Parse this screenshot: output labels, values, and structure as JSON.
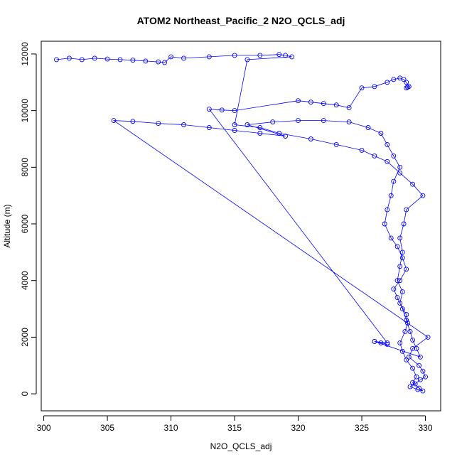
{
  "chart_data": {
    "type": "scatter",
    "title": "ATOM2 Northeast_Pacific_2 N2O_QCLS_adj",
    "xlabel": "N2O_QCLS_adj",
    "ylabel": "Altitude (m)",
    "xlim": [
      299.8,
      331.2
    ],
    "ylim": [
      -600,
      12450
    ],
    "xticks": [
      300,
      305,
      310,
      315,
      320,
      325,
      330
    ],
    "yticks": [
      0,
      2000,
      4000,
      6000,
      8000,
      10000,
      12000
    ],
    "marker": "open circle",
    "connected": true,
    "color": "#0000ff",
    "grid": false,
    "legend": "none",
    "x": [
      301.0,
      302.0,
      303.0,
      304.0,
      305.0,
      306.0,
      307.0,
      308.0,
      309.0,
      309.5,
      310.0,
      311.0,
      313.0,
      315.0,
      317.0,
      318.5,
      319.0,
      319.5,
      316.0,
      315.0,
      317.0,
      318.5,
      321.0,
      323.0,
      325.0,
      326.0,
      327.0,
      328.0,
      329.0,
      329.8,
      328.5,
      328.3,
      328.0,
      328.2,
      328.0,
      327.8,
      328.2,
      328.0,
      328.5,
      328.6,
      328.4,
      328.0,
      328.2,
      328.5,
      329.0,
      329.3,
      329.0,
      329.5,
      329.8,
      329.4,
      328.8,
      329.2,
      329.6,
      330.0,
      329.8,
      329.5,
      328.7,
      329.0,
      330.2,
      305.5,
      307.0,
      309.0,
      311.0,
      313.0,
      315.0,
      317.0,
      319.0,
      316.0,
      318.0,
      320.0,
      322.0,
      324.0,
      325.5,
      326.5,
      327.0,
      327.5,
      328.0,
      327.5,
      327.3,
      327.0,
      326.8,
      327.3,
      327.8,
      328.2,
      328.5,
      328.0,
      327.5,
      327.8,
      328.2,
      328.5,
      328.8,
      329.0,
      329.3,
      329.6,
      326.0,
      326.5,
      327.0,
      326.0,
      327.0,
      313.0,
      314.0,
      315.0,
      320.0,
      321.0,
      322.0,
      323.0,
      324.0,
      325.0,
      326.0,
      327.0,
      327.5,
      328.0,
      328.3,
      328.5,
      328.7,
      328.5,
      328.6
    ],
    "y": [
      11800,
      11850,
      11800,
      11850,
      11820,
      11800,
      11780,
      11750,
      11720,
      11700,
      11900,
      11850,
      11900,
      11950,
      11950,
      11980,
      11950,
      11900,
      11800,
      9500,
      9400,
      9200,
      9000,
      8800,
      8600,
      8400,
      8200,
      7800,
      7400,
      7000,
      6500,
      6000,
      5500,
      5000,
      4500,
      4000,
      3600,
      3200,
      2800,
      2500,
      2200,
      1800,
      1500,
      1200,
      900,
      600,
      400,
      200,
      100,
      150,
      250,
      350,
      500,
      600,
      800,
      1000,
      1300,
      1600,
      2000,
      9650,
      9620,
      9550,
      9500,
      9400,
      9300,
      9200,
      9100,
      9500,
      9600,
      9650,
      9650,
      9600,
      9400,
      9200,
      8800,
      8400,
      8000,
      7500,
      7000,
      6500,
      6000,
      5500,
      5200,
      4800,
      4400,
      4000,
      3700,
      3400,
      3000,
      2600,
      2200,
      1900,
      1600,
      1300,
      1850,
      1800,
      1750,
      1850,
      1800,
      10050,
      10020,
      10000,
      10350,
      10300,
      10250,
      10200,
      10100,
      10800,
      10850,
      11000,
      11100,
      11150,
      11100,
      11000,
      10850,
      10800,
      10830
    ],
    "annotations": []
  }
}
